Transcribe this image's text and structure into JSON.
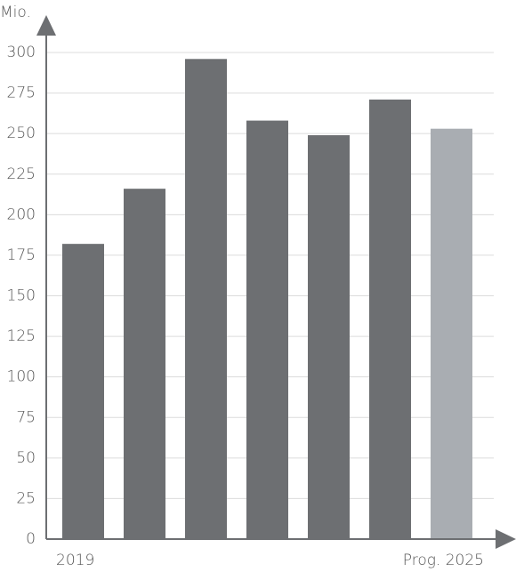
{
  "chart_data": {
    "type": "bar",
    "y_label": "Mio.",
    "categories": [
      "2019",
      null,
      null,
      null,
      null,
      null,
      "Prog. 2025"
    ],
    "values": [
      182,
      216,
      296,
      258,
      249,
      271,
      253
    ],
    "colors": [
      "#6d6f72",
      "#6d6f72",
      "#6d6f72",
      "#6d6f72",
      "#6d6f72",
      "#6d6f72",
      "#a9adb2"
    ],
    "ylim": [
      0,
      300
    ],
    "yticks": [
      0,
      25,
      50,
      75,
      100,
      125,
      150,
      175,
      200,
      225,
      250,
      275,
      300
    ],
    "grid": true
  }
}
